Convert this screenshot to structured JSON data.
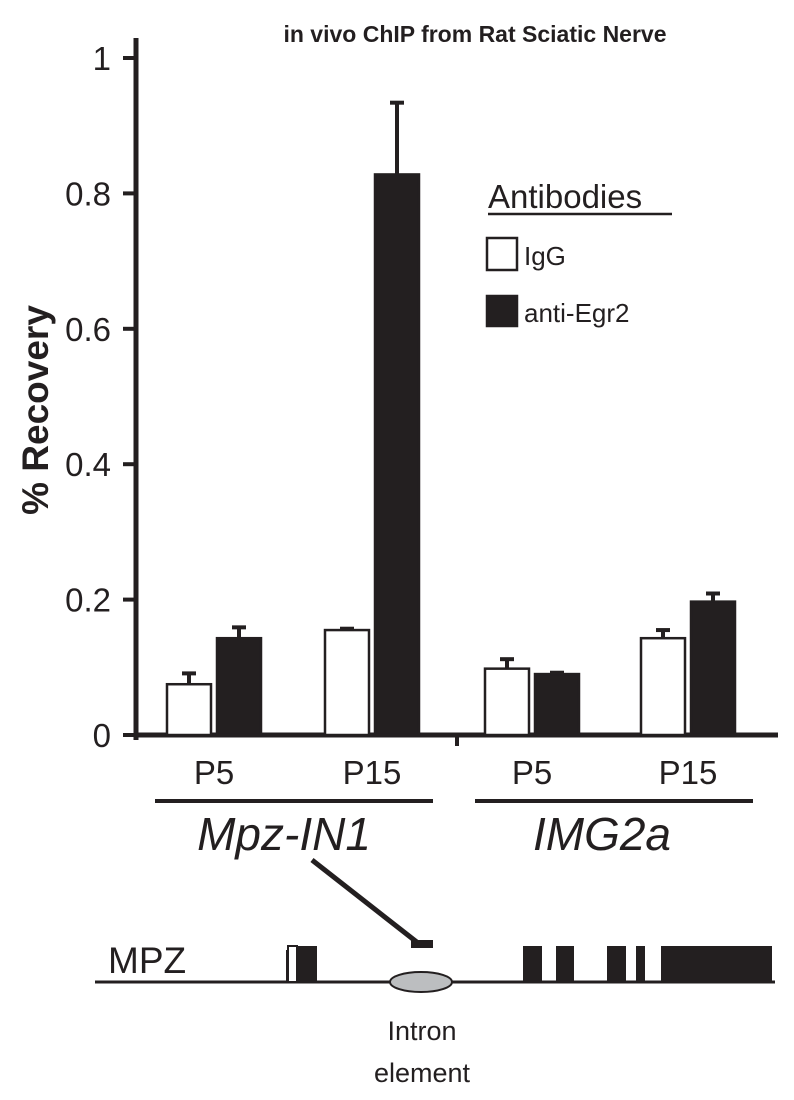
{
  "chart_data": {
    "type": "bar",
    "title": "in vivo ChIP from Rat Sciatic Nerve",
    "ylabel": "% Recovery",
    "xlabel": "",
    "ylim": [
      0,
      1
    ],
    "yticks": [
      {
        "value": 0,
        "label": "0"
      },
      {
        "value": 0.2,
        "label": "0.2"
      },
      {
        "value": 0.4,
        "label": "0.4"
      },
      {
        "value": 0.6,
        "label": "0.6"
      },
      {
        "value": 0.8,
        "label": "0.8"
      },
      {
        "value": 1,
        "label": "1"
      }
    ],
    "categories": [
      "P5",
      "P15",
      "P5",
      "P15"
    ],
    "groups": [
      {
        "label": "Mpz-IN1",
        "categories": [
          "P5",
          "P15"
        ]
      },
      {
        "label": "IMG2a",
        "categories": [
          "P5",
          "P15"
        ]
      }
    ],
    "legend_title": "Antibodies",
    "legend_position": "top-right",
    "grid": false,
    "series": [
      {
        "name": "IgG",
        "color": "#ffffff",
        "values": [
          0.075,
          0.155,
          0.098,
          0.143
        ],
        "errors": [
          0.016,
          0.002,
          0.014,
          0.012
        ]
      },
      {
        "name": "anti-Egr2",
        "color": "#231f20",
        "values": [
          0.143,
          0.828,
          0.09,
          0.197
        ],
        "errors": [
          0.016,
          0.106,
          0.002,
          0.012
        ]
      }
    ]
  },
  "diagram": {
    "gene_label": "MPZ",
    "element_label_line1": "Intron",
    "element_label_line2": "element"
  }
}
